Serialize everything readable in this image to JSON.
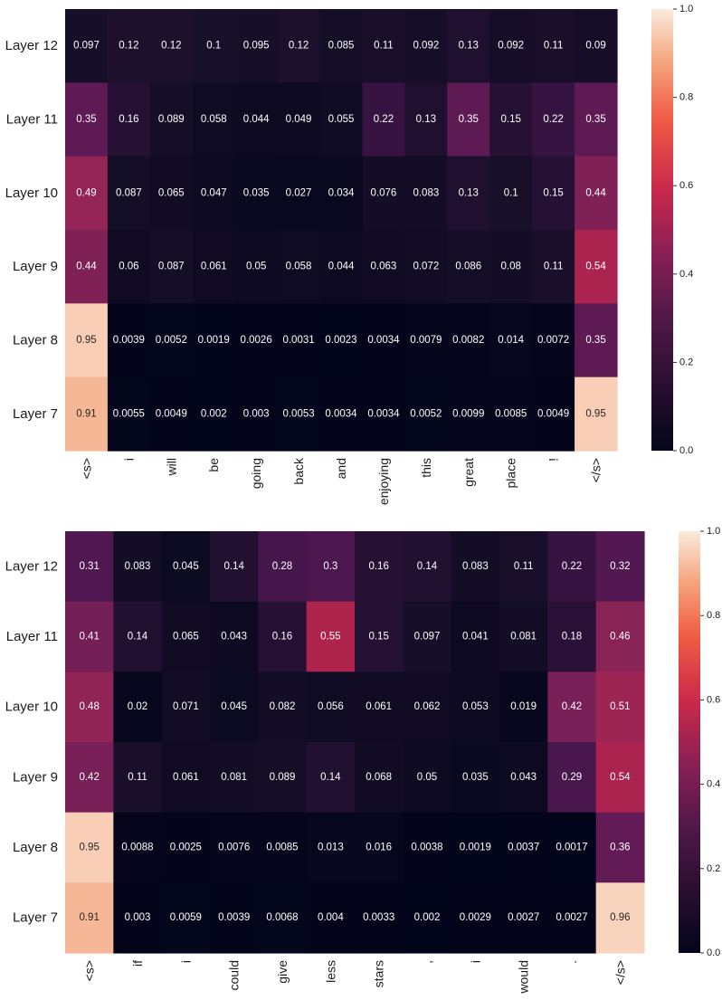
{
  "chart_data": [
    {
      "type": "heatmap",
      "rows": [
        "Layer 12",
        "Layer 11",
        "Layer 10",
        "Layer 9",
        "Layer 8",
        "Layer 7"
      ],
      "columns": [
        "<s>",
        "i",
        "will",
        "be",
        "going",
        "back",
        "and",
        "enjoying",
        "this",
        "great",
        "place",
        "!",
        "</s>"
      ],
      "values": [
        [
          "0.097",
          "0.12",
          "0.12",
          "0.1",
          "0.095",
          "0.12",
          "0.085",
          "0.11",
          "0.092",
          "0.13",
          "0.092",
          "0.11",
          "0.09"
        ],
        [
          "0.35",
          "0.16",
          "0.089",
          "0.058",
          "0.044",
          "0.049",
          "0.055",
          "0.22",
          "0.13",
          "0.35",
          "0.15",
          "0.22",
          "0.35"
        ],
        [
          "0.49",
          "0.087",
          "0.065",
          "0.047",
          "0.035",
          "0.027",
          "0.034",
          "0.076",
          "0.083",
          "0.13",
          "0.1",
          "0.15",
          "0.44"
        ],
        [
          "0.44",
          "0.06",
          "0.087",
          "0.061",
          "0.05",
          "0.058",
          "0.044",
          "0.063",
          "0.072",
          "0.086",
          "0.08",
          "0.11",
          "0.54"
        ],
        [
          "0.95",
          "0.0039",
          "0.0052",
          "0.0019",
          "0.0026",
          "0.0031",
          "0.0023",
          "0.0034",
          "0.0079",
          "0.0082",
          "0.014",
          "0.0072",
          "0.35"
        ],
        [
          "0.91",
          "0.0055",
          "0.0049",
          "0.002",
          "0.003",
          "0.0053",
          "0.0034",
          "0.0034",
          "0.0052",
          "0.0099",
          "0.0085",
          "0.0049",
          "0.95"
        ]
      ],
      "colorbar": {
        "range": [
          0,
          1
        ],
        "ticks": [
          "0.0",
          "0.2",
          "0.4",
          "0.6",
          "0.8",
          "1.0"
        ]
      },
      "colormap": "rocket"
    },
    {
      "type": "heatmap",
      "rows": [
        "Layer 12",
        "Layer 11",
        "Layer 10",
        "Layer 9",
        "Layer 8",
        "Layer 7"
      ],
      "columns": [
        "<s>",
        "if",
        "i",
        "could",
        "give",
        "less",
        "stars",
        ",",
        "i",
        "would",
        ".",
        "</s>"
      ],
      "values": [
        [
          "0.31",
          "0.083",
          "0.045",
          "0.14",
          "0.28",
          "0.3",
          "0.16",
          "0.14",
          "0.083",
          "0.11",
          "0.22",
          "0.32"
        ],
        [
          "0.41",
          "0.14",
          "0.065",
          "0.043",
          "0.16",
          "0.55",
          "0.15",
          "0.097",
          "0.041",
          "0.081",
          "0.18",
          "0.46"
        ],
        [
          "0.48",
          "0.02",
          "0.071",
          "0.045",
          "0.082",
          "0.056",
          "0.061",
          "0.062",
          "0.053",
          "0.019",
          "0.42",
          "0.51"
        ],
        [
          "0.42",
          "0.11",
          "0.061",
          "0.081",
          "0.089",
          "0.14",
          "0.068",
          "0.05",
          "0.035",
          "0.043",
          "0.29",
          "0.54"
        ],
        [
          "0.95",
          "0.0088",
          "0.0025",
          "0.0076",
          "0.0085",
          "0.013",
          "0.016",
          "0.0038",
          "0.0019",
          "0.0037",
          "0.0017",
          "0.36"
        ],
        [
          "0.91",
          "0.003",
          "0.0059",
          "0.0039",
          "0.0068",
          "0.004",
          "0.0033",
          "0.002",
          "0.0029",
          "0.0027",
          "0.0027",
          "0.96"
        ]
      ],
      "colorbar": {
        "range": [
          0,
          1
        ],
        "ticks": [
          "0.0",
          "0.2",
          "0.4",
          "0.6",
          "0.8",
          "1.0"
        ]
      },
      "colormap": "rocket"
    }
  ]
}
